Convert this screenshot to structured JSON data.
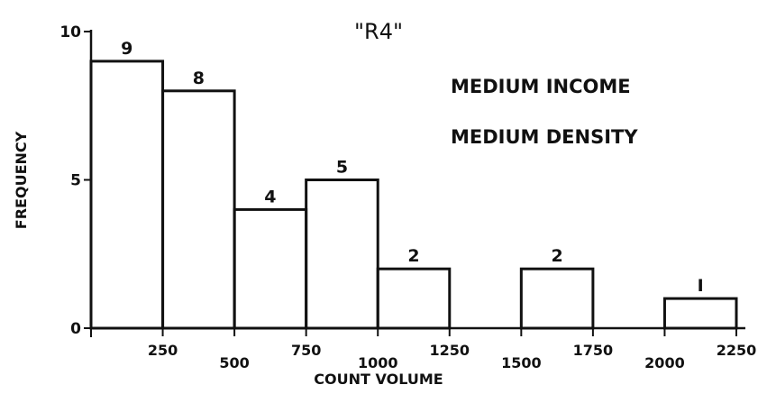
{
  "chart_data": {
    "type": "bar",
    "title": "\"R4\"",
    "xlabel": "COUNT VOLUME",
    "ylabel": "FREQUENCY",
    "annotations": [
      "MEDIUM INCOME",
      "MEDIUM DENSITY"
    ],
    "bins": [
      {
        "from": 0,
        "to": 250,
        "value": 9,
        "label": "9"
      },
      {
        "from": 250,
        "to": 500,
        "value": 8,
        "label": "8"
      },
      {
        "from": 500,
        "to": 750,
        "value": 4,
        "label": "4"
      },
      {
        "from": 750,
        "to": 1000,
        "value": 5,
        "label": "5"
      },
      {
        "from": 1000,
        "to": 1250,
        "value": 2,
        "label": "2"
      },
      {
        "from": 1250,
        "to": 1500,
        "value": 0,
        "label": ""
      },
      {
        "from": 1500,
        "to": 1750,
        "value": 2,
        "label": "2"
      },
      {
        "from": 1750,
        "to": 2000,
        "value": 0,
        "label": ""
      },
      {
        "from": 2000,
        "to": 2250,
        "value": 1,
        "label": "I"
      }
    ],
    "x_ticks": [
      250,
      500,
      750,
      1000,
      1250,
      1500,
      1750,
      2000,
      2250
    ],
    "x_tick_labels": [
      "250",
      "500",
      "750",
      "1000",
      "1250",
      "1500",
      "1750",
      "2000",
      "2250"
    ],
    "y_ticks": [
      0,
      5,
      10
    ],
    "y_tick_labels": [
      "0",
      "5",
      "10"
    ],
    "xlim": [
      0,
      2250
    ],
    "ylim": [
      0,
      10
    ],
    "grid": false,
    "colors": {
      "ink": "#111111",
      "background": "#ffffff"
    }
  }
}
